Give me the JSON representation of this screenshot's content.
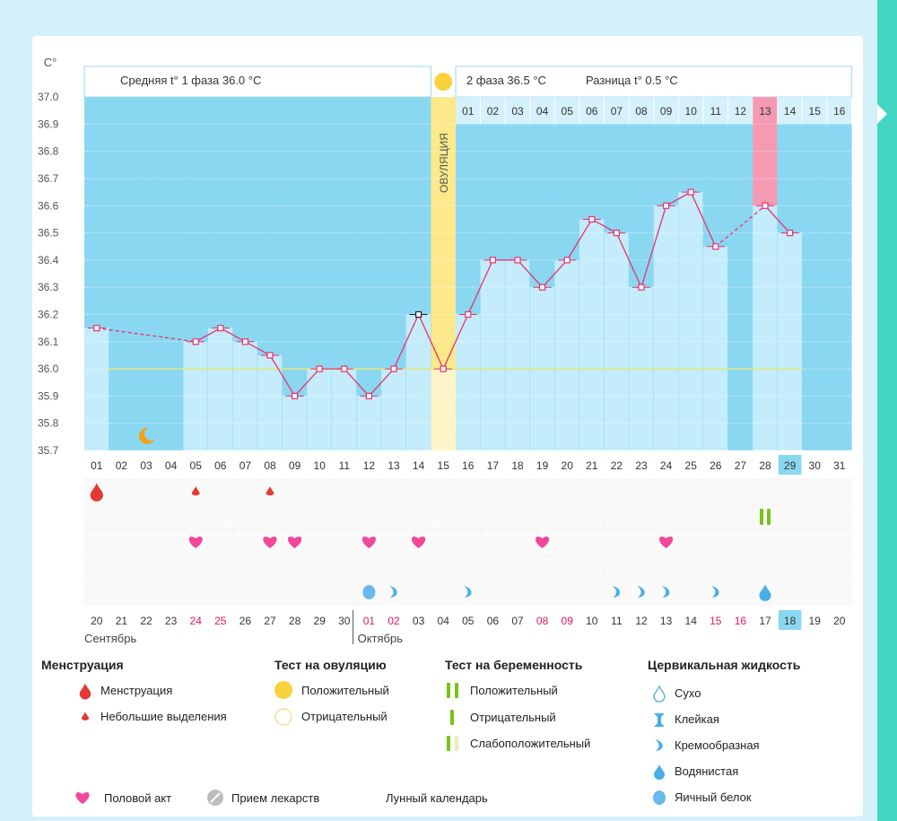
{
  "chart_data": {
    "type": "line",
    "y_unit_label": "C°",
    "ylim": [
      35.7,
      37.0
    ],
    "yticks": [
      "35.7",
      "35.8",
      "35.9",
      "36.0",
      "36.1",
      "36.2",
      "36.3",
      "36.4",
      "36.5",
      "36.6",
      "36.7",
      "36.8",
      "36.9",
      "37.0"
    ],
    "cycle_days": [
      "01",
      "02",
      "03",
      "04",
      "05",
      "06",
      "07",
      "08",
      "09",
      "10",
      "11",
      "12",
      "13",
      "14",
      "15",
      "16",
      "17",
      "18",
      "19",
      "20",
      "21",
      "22",
      "23",
      "24",
      "25",
      "26",
      "27",
      "28",
      "29",
      "30",
      "31"
    ],
    "calendar_dates": [
      "20",
      "21",
      "22",
      "23",
      "24",
      "25",
      "26",
      "27",
      "28",
      "29",
      "30",
      "01",
      "02",
      "03",
      "04",
      "05",
      "06",
      "07",
      "08",
      "09",
      "10",
      "11",
      "12",
      "13",
      "14",
      "15",
      "16",
      "17",
      "18",
      "19",
      "20"
    ],
    "calendar_red": [
      "24",
      "25",
      "01",
      "02",
      "08",
      "09",
      "15",
      "16"
    ],
    "months": [
      "Сентябрь",
      "Октябрь"
    ],
    "temperatures": [
      36.15,
      null,
      null,
      null,
      36.1,
      36.15,
      36.1,
      36.05,
      35.9,
      36.0,
      36.0,
      35.9,
      36.0,
      36.2,
      36.0,
      36.2,
      36.4,
      36.4,
      36.3,
      36.4,
      36.55,
      36.5,
      36.3,
      36.6,
      36.65,
      36.45,
      null,
      36.6,
      36.5,
      null,
      null
    ],
    "coverline": 36.0,
    "ovulation_day": 15,
    "ovulation_label": "ОВУЛЯЦИЯ",
    "phase1_text": "Средняя t° 1 фаза 36.0 °C",
    "phase2_text": "2 фаза 36.5 °C",
    "diff_text": "Разница t° 0.5 °C",
    "phase2_days": [
      "01",
      "02",
      "03",
      "04",
      "05",
      "06",
      "07",
      "08",
      "09",
      "10",
      "11",
      "12",
      "13",
      "14",
      "15",
      "16"
    ],
    "highlight_phase2_day": 13,
    "today_cycle_day": 29,
    "menstruation_days": [
      1
    ],
    "spotting_days": [
      5,
      8
    ],
    "pregnancy_test_positive_days": [
      28
    ],
    "intercourse_days": [
      5,
      8,
      9,
      12,
      14,
      19,
      24
    ],
    "lunar_day": 3,
    "egg_white_days": [
      12
    ],
    "creamy_days": [
      13,
      16,
      22,
      23,
      24,
      26
    ],
    "watery_days": [
      28
    ]
  },
  "legend": {
    "menstruation": {
      "title": "Менструация",
      "items": [
        "Менструация",
        "Небольшие выделения"
      ]
    },
    "ovulation_test": {
      "title": "Тест на овуляцию",
      "items": [
        "Положительный",
        "Отрицательный"
      ]
    },
    "pregnancy_test": {
      "title": "Тест на беременность",
      "items": [
        "Положительный",
        "Отрицательный",
        "Слабоположительный"
      ]
    },
    "cervical": {
      "title": "Цервикальная жидкость",
      "items": [
        "Сухо",
        "Клейкая",
        "Кремообразная",
        "Водянистая",
        "Яичный белок"
      ]
    },
    "bottom": [
      "Половой акт",
      "Прием лекарств",
      "Лунный календарь"
    ]
  },
  "colors": {
    "bar": "#c4ecfa",
    "bg_dark": "#8ad7f2",
    "line": "#e8316d",
    "ovulation": "#fbe98a",
    "pink": "#f59ab2",
    "coverline": "#e2e97a"
  }
}
